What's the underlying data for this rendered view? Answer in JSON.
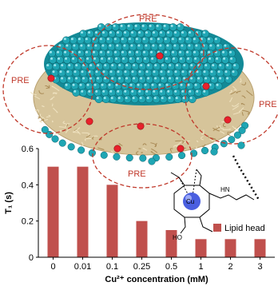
{
  "figure": {
    "pre_labels": [
      "PRE",
      "PRE",
      "PRE",
      "PRE"
    ],
    "colors": {
      "bar": "#c0504d",
      "pre_ring": "#c0392b",
      "head_sphere": "#1fa6b4",
      "lipid_tail": "#d8c7a0",
      "probe": "#e8212b",
      "cu_sphere": "#4a5fe0"
    },
    "chem_labels": {
      "metal": "Cu",
      "oh": "HO",
      "nh": "HN",
      "n": "N",
      "o": "O"
    }
  },
  "chart_data": {
    "type": "bar",
    "categories": [
      "0",
      "0.01",
      "0.1",
      "0.25",
      "0.5",
      "1",
      "2",
      "3"
    ],
    "values": [
      0.5,
      0.5,
      0.4,
      0.2,
      0.15,
      0.1,
      0.1,
      0.1
    ],
    "xlabel": "Cu²⁺ concentration (mM)",
    "ylabel": "T₁ (s)",
    "ylim": [
      0,
      0.6
    ],
    "yticks": [
      "0",
      "0.2",
      "0.4",
      "0.6"
    ],
    "legend": {
      "label": "Lipid head",
      "position": "right"
    }
  }
}
